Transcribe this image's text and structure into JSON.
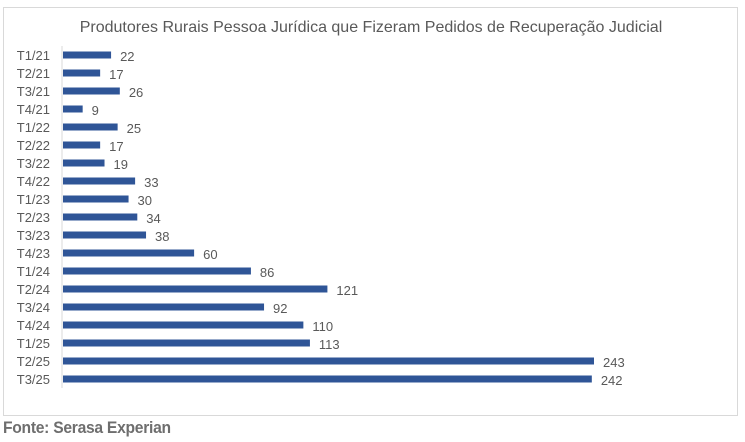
{
  "chart_data": {
    "type": "bar",
    "orientation": "horizontal",
    "title": "Produtores Rurais Pessoa Jurídica que Fizeram Pedidos de Recuperação Judicial",
    "xlabel": "",
    "ylabel": "",
    "categories": [
      "T1/21",
      "T2/21",
      "T3/21",
      "T4/21",
      "T1/22",
      "T2/22",
      "T3/22",
      "T4/22",
      "T1/23",
      "T2/23",
      "T3/23",
      "T4/23",
      "T1/24",
      "T2/24",
      "T3/24",
      "T4/24",
      "T1/25",
      "T2/25",
      "T3/25"
    ],
    "values": [
      22,
      17,
      26,
      9,
      25,
      17,
      19,
      33,
      30,
      34,
      38,
      60,
      86,
      121,
      92,
      110,
      113,
      243,
      242
    ],
    "xlim": [
      0,
      243
    ],
    "grid": false,
    "legend": "none",
    "data_labels": true
  },
  "colors": {
    "bar": "#2f5597",
    "text": "#595959",
    "title": "#595959",
    "axis": "#d9d9d9",
    "source": "#6e6e6e"
  },
  "footer": {
    "source": "Fonte: Serasa Experian"
  }
}
